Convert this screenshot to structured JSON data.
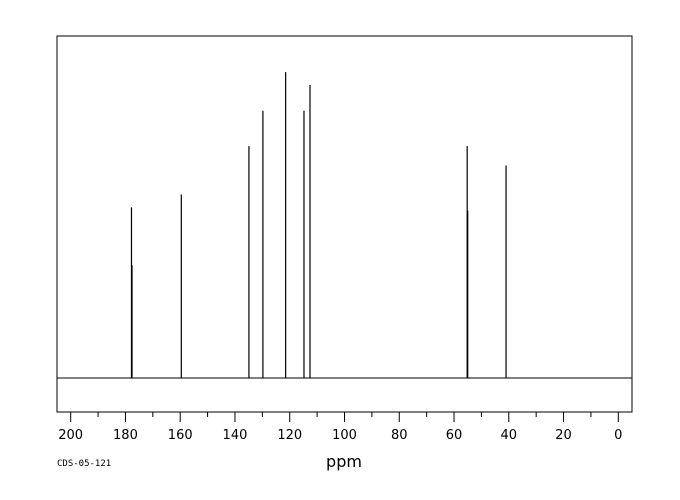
{
  "chart_data": {
    "type": "line",
    "xlabel": "ppm",
    "ylabel": "",
    "xlim": [
      205,
      -5
    ],
    "x_reversed": true,
    "grid": false,
    "spectrum_code": "CDS-05-121",
    "major_ticks": [
      200,
      180,
      160,
      140,
      120,
      100,
      80,
      60,
      40,
      20,
      0
    ],
    "minor_ticks": [
      190,
      170,
      150,
      130,
      110,
      90,
      70,
      50,
      30,
      10
    ],
    "peaks": [
      {
        "ppm": 177.8,
        "intensity": 0.53
      },
      {
        "ppm": 177.6,
        "intensity": 0.35
      },
      {
        "ppm": 159.6,
        "intensity": 0.57
      },
      {
        "ppm": 134.9,
        "intensity": 0.72
      },
      {
        "ppm": 129.8,
        "intensity": 0.83
      },
      {
        "ppm": 121.5,
        "intensity": 0.95
      },
      {
        "ppm": 114.8,
        "intensity": 0.83
      },
      {
        "ppm": 112.6,
        "intensity": 0.91
      },
      {
        "ppm": 55.2,
        "intensity": 0.72
      },
      {
        "ppm": 55.0,
        "intensity": 0.52
      },
      {
        "ppm": 41.0,
        "intensity": 0.66
      }
    ],
    "line_color": "#000000"
  }
}
